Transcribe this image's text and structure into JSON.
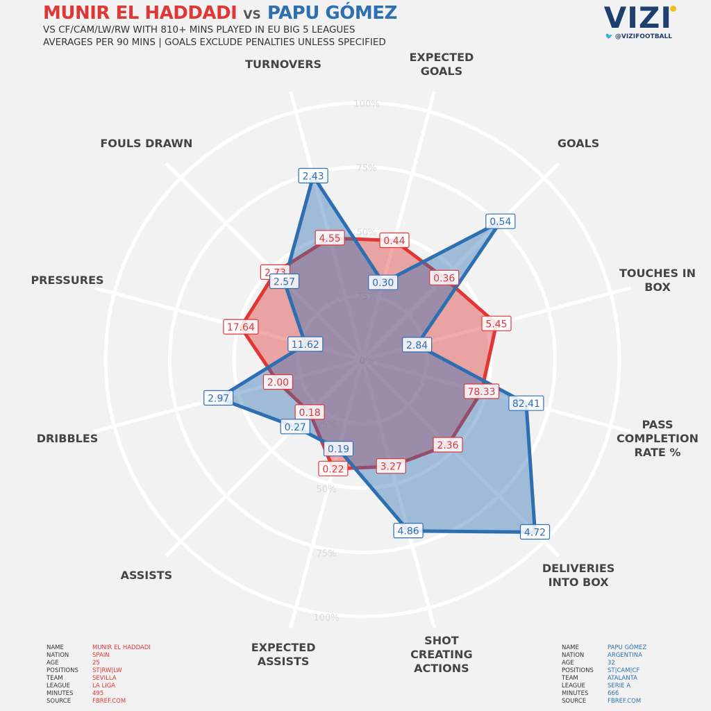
{
  "header": {
    "player1": "MUNIR EL HADDADI",
    "vs": "VS",
    "player2": "PAPU GÓMEZ",
    "subtitle1": "VS CF/CAM/LW/RW WITH 810+ MINS PLAYED IN EU BIG 5 LEAGUES",
    "subtitle2": "AVERAGES PER 90 MINS | GOALS EXCLUDE PENALTIES UNLESS SPECIFIED"
  },
  "brand": {
    "logo": "VIZI",
    "handle": "@VIZIFOOTBALL"
  },
  "colors": {
    "player1": "#e03636",
    "player2": "#2e6fb2",
    "grid": "#ffffff",
    "background": "#f2f2f2"
  },
  "chart_data": {
    "type": "radar",
    "axes": [
      "EXPECTED GOALS",
      "GOALS",
      "TOUCHES IN BOX",
      "PASS COMPLETION RATE %",
      "DELIVERIES INTO BOX",
      "SHOT CREATING ACTIONS",
      "EXPECTED ASSISTS",
      "ASSISTS",
      "DRIBBLES",
      "PRESSURES",
      "FOULS DRAWN",
      "TURNOVERS"
    ],
    "rings": [
      "0%",
      "25%",
      "50%",
      "75%",
      "100%"
    ],
    "series": [
      {
        "name": "MUNIR EL HADDADI",
        "labels": [
          "0.44",
          "0.36",
          "5.45",
          "78.33",
          "2.36",
          "3.27",
          "0.22",
          "0.18",
          "2.00",
          "17.64",
          "2.73",
          "4.55"
        ],
        "percentiles": [
          0.48,
          0.45,
          0.54,
          0.48,
          0.47,
          0.43,
          0.44,
          0.29,
          0.34,
          0.49,
          0.48,
          0.49
        ]
      },
      {
        "name": "PAPU GÓMEZ",
        "labels": [
          "0.30",
          "0.54",
          "2.84",
          "82.41",
          "4.72",
          "4.86",
          "0.19",
          "0.27",
          "2.97",
          "11.62",
          "2.57",
          "2.43"
        ],
        "percentiles": [
          0.31,
          0.76,
          0.22,
          0.66,
          0.95,
          0.69,
          0.36,
          0.37,
          0.58,
          0.23,
          0.43,
          0.74
        ]
      }
    ]
  },
  "info_labels": [
    "NAME",
    "NATION",
    "AGE",
    "POSITIONS",
    "TEAM",
    "LEAGUE",
    "MINUTES",
    "SOURCE"
  ],
  "player1_info": [
    "MUNIR EL HADDADI",
    "SPAIN",
    "25",
    "ST|RW|LW",
    "SEVILLA",
    "LA LIGA",
    "495",
    "FBREF.COM"
  ],
  "player2_info": [
    "PAPU GÓMEZ",
    "ARGENTINA",
    "32",
    "ST|CAM|CF",
    "ATALANTA",
    "SERIE A",
    "666",
    "FBREF.COM"
  ]
}
